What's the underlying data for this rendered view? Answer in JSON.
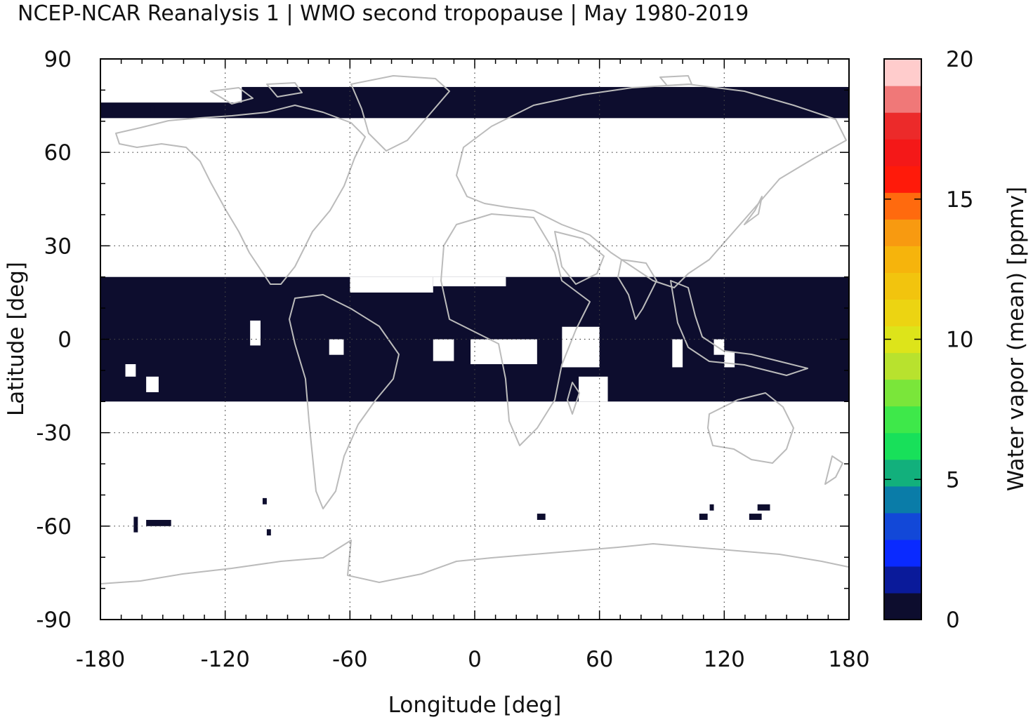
{
  "title": "NCEP-NCAR Reanalysis 1 | WMO second tropopause | May 1980-2019",
  "colors": {
    "fill": "#0d0d2e",
    "coast": "#bbbbbb",
    "frame": "#000000",
    "grid": "#444444"
  },
  "colorbar": {
    "label": "Water vapor (mean) [ppmv]",
    "ticks": [
      "0",
      "5",
      "10",
      "15",
      "20"
    ],
    "colors": [
      "#0d0d2e",
      "#0a1a9a",
      "#0a2aff",
      "#1248d8",
      "#0a7ca8",
      "#12b07c",
      "#18e05a",
      "#3ee84a",
      "#7ae63a",
      "#b8e22e",
      "#dde41a",
      "#ecd412",
      "#f2c40e",
      "#f6b40c",
      "#f89a10",
      "#ff6a0e",
      "#ff1a0a",
      "#f41818",
      "#ec2a2a",
      "#f07878",
      "#ffcccc"
    ]
  },
  "chart_data": {
    "type": "heatmap",
    "title": "NCEP-NCAR Reanalysis 1 | WMO second tropopause | May 1980-2019",
    "xlabel": "Longitude [deg]",
    "ylabel": "Latitude [deg]",
    "xlim": [
      -180,
      180
    ],
    "ylim": [
      -90,
      90
    ],
    "xticks": [
      "-180",
      "-120",
      "-60",
      "0",
      "60",
      "120",
      "180"
    ],
    "yticks": [
      "90",
      "60",
      "30",
      "0",
      "-30",
      "-60",
      "-90"
    ],
    "grid": true,
    "value": 0,
    "regions_lon_lat": [
      [
        -180,
        20,
        360,
        40
      ],
      [
        -180,
        76,
        360,
        5
      ],
      [
        -112,
        81,
        292,
        9
      ]
    ],
    "holes_lon_lat": [
      [
        -108,
        6,
        5,
        8
      ],
      [
        -70,
        0,
        7,
        5
      ],
      [
        -60,
        20,
        40,
        5
      ],
      [
        -20,
        20,
        35,
        3
      ],
      [
        -20,
        0,
        10,
        7
      ],
      [
        -2,
        0,
        32,
        8
      ],
      [
        42,
        4,
        18,
        13
      ],
      [
        50,
        -12,
        14,
        8
      ],
      [
        95,
        0,
        5,
        9
      ],
      [
        115,
        0,
        5,
        5
      ],
      [
        120,
        -4,
        5,
        5
      ],
      [
        -158,
        -12,
        6,
        5
      ],
      [
        -168,
        -8,
        5,
        4
      ]
    ],
    "islands_lon_lat": [
      [
        -164,
        -57,
        2,
        5
      ],
      [
        -158,
        -58,
        12,
        2
      ],
      [
        -102,
        -51,
        2,
        2
      ],
      [
        -100,
        -61,
        2,
        2
      ],
      [
        30,
        -56,
        4,
        2
      ],
      [
        108,
        -56,
        4,
        2
      ],
      [
        113,
        -53,
        2,
        2
      ],
      [
        132,
        -56,
        6,
        2
      ],
      [
        136,
        -53,
        6,
        2
      ],
      [
        -174,
        75,
        2,
        2
      ],
      [
        -156,
        75,
        2,
        2
      ]
    ]
  }
}
